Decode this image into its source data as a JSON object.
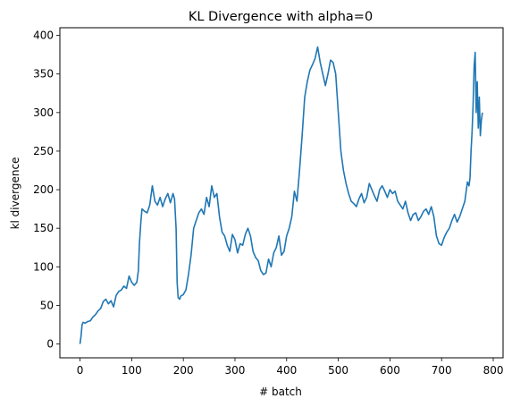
{
  "chart_data": {
    "type": "line",
    "title": "KL Divergence with alpha=0",
    "xlabel": "# batch",
    "ylabel": "kl divergence",
    "xlim": [
      -39,
      819
    ],
    "ylim": [
      -18,
      410
    ],
    "xticks": [
      0,
      100,
      200,
      300,
      400,
      500,
      600,
      700,
      800
    ],
    "yticks": [
      0,
      50,
      100,
      150,
      200,
      250,
      300,
      350,
      400
    ],
    "grid": false,
    "colors": {
      "line": "#1f77b4"
    },
    "series": [
      {
        "x": [
          0,
          2,
          4,
          6,
          10,
          15,
          20,
          25,
          30,
          35,
          40,
          45,
          50,
          55,
          60,
          65,
          70,
          75,
          80,
          85,
          90,
          95,
          100,
          105,
          110,
          113,
          115,
          118,
          120,
          125,
          130,
          135,
          140,
          145,
          150,
          155,
          160,
          165,
          170,
          175,
          180,
          183,
          186,
          188,
          190,
          193,
          195,
          200,
          205,
          210,
          215,
          220,
          225,
          230,
          235,
          240,
          245,
          250,
          255,
          260,
          265,
          270,
          275,
          280,
          285,
          290,
          295,
          300,
          305,
          310,
          315,
          320,
          325,
          330,
          335,
          340,
          345,
          350,
          355,
          360,
          365,
          370,
          375,
          380,
          385,
          390,
          395,
          400,
          405,
          410,
          415,
          420,
          425,
          430,
          435,
          440,
          445,
          450,
          455,
          460,
          465,
          470,
          475,
          480,
          485,
          490,
          495,
          500,
          502,
          505,
          510,
          515,
          520,
          525,
          530,
          535,
          540,
          545,
          550,
          555,
          560,
          565,
          570,
          575,
          580,
          585,
          590,
          595,
          600,
          605,
          610,
          615,
          620,
          625,
          630,
          635,
          640,
          645,
          650,
          655,
          660,
          665,
          670,
          675,
          680,
          685,
          690,
          695,
          700,
          705,
          710,
          715,
          720,
          725,
          730,
          735,
          740,
          745,
          750,
          753,
          755,
          757,
          759,
          761,
          763,
          765,
          767,
          769,
          771,
          773,
          775,
          777,
          779
        ],
        "y": [
          0,
          10,
          25,
          28,
          27,
          29,
          30,
          35,
          38,
          43,
          46,
          55,
          58,
          52,
          56,
          48,
          63,
          68,
          70,
          75,
          72,
          88,
          80,
          76,
          80,
          95,
          130,
          160,
          175,
          172,
          170,
          180,
          205,
          185,
          180,
          190,
          178,
          188,
          195,
          183,
          195,
          188,
          150,
          80,
          60,
          58,
          62,
          64,
          70,
          90,
          115,
          150,
          160,
          170,
          175,
          168,
          190,
          178,
          205,
          190,
          195,
          165,
          145,
          140,
          128,
          120,
          142,
          135,
          118,
          130,
          128,
          142,
          150,
          140,
          120,
          112,
          108,
          95,
          90,
          92,
          110,
          100,
          118,
          125,
          140,
          115,
          120,
          140,
          150,
          165,
          198,
          185,
          225,
          270,
          320,
          340,
          355,
          362,
          370,
          385,
          365,
          350,
          335,
          350,
          368,
          365,
          350,
          300,
          280,
          250,
          225,
          208,
          195,
          185,
          182,
          178,
          188,
          195,
          183,
          190,
          208,
          200,
          192,
          185,
          200,
          205,
          198,
          190,
          200,
          195,
          198,
          185,
          180,
          175,
          185,
          170,
          160,
          168,
          170,
          160,
          165,
          172,
          175,
          168,
          178,
          165,
          140,
          130,
          128,
          138,
          145,
          150,
          160,
          168,
          158,
          165,
          175,
          185,
          210,
          205,
          215,
          250,
          275,
          310,
          360,
          378,
          300,
          340,
          280,
          320,
          270,
          290,
          300
        ]
      }
    ]
  }
}
